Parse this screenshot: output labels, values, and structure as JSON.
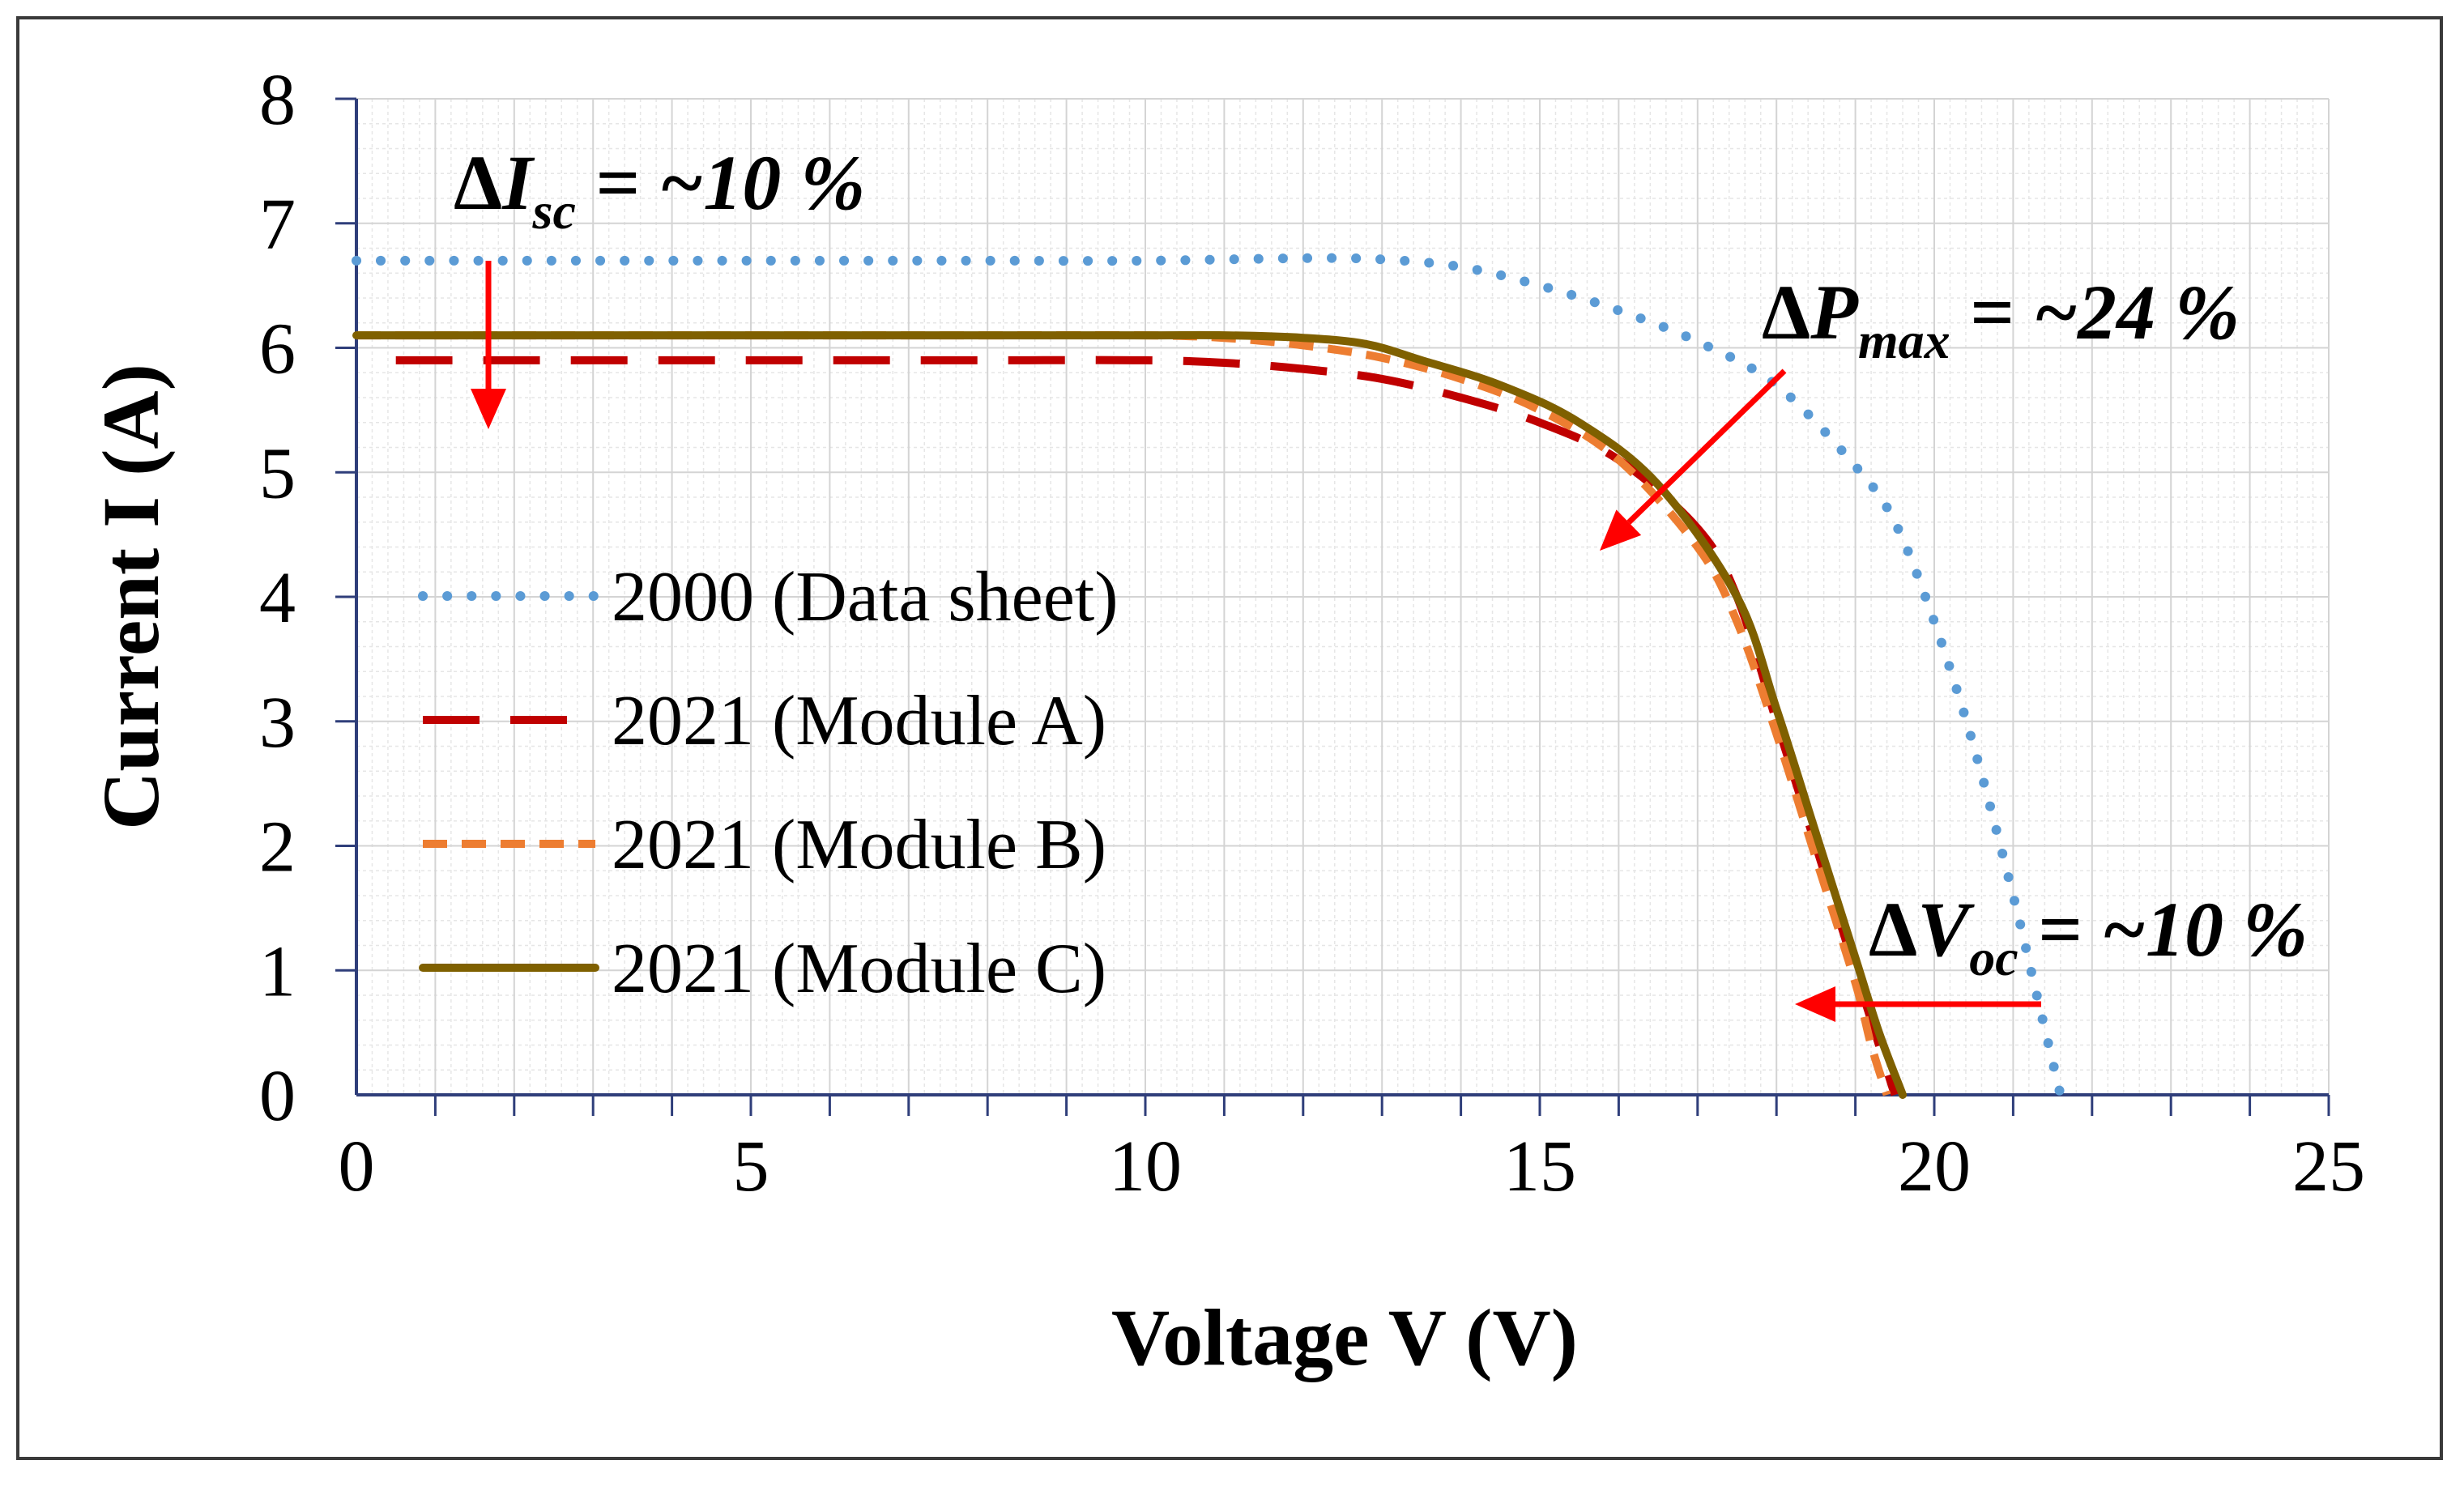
{
  "chart_data": {
    "type": "line",
    "xlabel": "Voltage V (V)",
    "ylabel": "Current I (A)",
    "xlim": [
      0,
      25
    ],
    "ylim": [
      0,
      8
    ],
    "xticks": [
      "0",
      "5",
      "10",
      "15",
      "20",
      "25"
    ],
    "yticks": [
      "0",
      "1",
      "2",
      "3",
      "4",
      "5",
      "6",
      "7",
      "8"
    ],
    "grid": true,
    "legend_position": "center-left",
    "series": [
      {
        "name": "2000 (Data sheet)",
        "color": "#5B9BD5",
        "style": "dotted",
        "x": [
          0,
          2,
          4,
          6,
          8,
          10,
          12,
          13,
          14,
          15,
          16,
          17,
          18,
          19,
          19.5,
          20,
          20.5,
          21,
          21.3,
          21.6
        ],
        "y": [
          6.7,
          6.7,
          6.7,
          6.7,
          6.7,
          6.7,
          6.72,
          6.71,
          6.65,
          6.5,
          6.3,
          6.05,
          5.7,
          5.05,
          4.6,
          3.8,
          2.8,
          1.6,
          0.8,
          0
        ]
      },
      {
        "name": "2021 (Module A)",
        "color": "#C00000",
        "style": "dashed",
        "x": [
          0.5,
          2,
          4,
          6,
          8,
          10,
          11,
          12,
          13,
          14,
          15,
          16,
          17,
          17.5,
          18,
          18.5,
          19,
          19.3,
          19.5
        ],
        "y": [
          5.9,
          5.9,
          5.9,
          5.9,
          5.9,
          5.9,
          5.88,
          5.83,
          5.75,
          5.6,
          5.4,
          5.1,
          4.55,
          4.0,
          3.0,
          2.0,
          1.0,
          0.4,
          0
        ]
      },
      {
        "name": "2021 (Module B)",
        "color": "#ED7D31",
        "style": "short-dash",
        "x": [
          0,
          2,
          4,
          6,
          8,
          10,
          11,
          12,
          13,
          14,
          15,
          16,
          17,
          17.5,
          18,
          18.5,
          19,
          19.2,
          19.4
        ],
        "y": [
          6.1,
          6.1,
          6.1,
          6.1,
          6.1,
          6.1,
          6.08,
          6.02,
          5.92,
          5.75,
          5.5,
          5.1,
          4.4,
          3.8,
          2.9,
          1.9,
          0.9,
          0.4,
          0
        ]
      },
      {
        "name": "2021 (Module C)",
        "color": "#7F6000",
        "style": "solid",
        "x": [
          0,
          2,
          4,
          6,
          8,
          10,
          11,
          12,
          12.8,
          13.5,
          14.5,
          15.5,
          16.5,
          17.5,
          18,
          18.5,
          19,
          19.3,
          19.6
        ],
        "y": [
          6.1,
          6.1,
          6.1,
          6.1,
          6.1,
          6.1,
          6.1,
          6.08,
          6.03,
          5.9,
          5.7,
          5.4,
          4.9,
          4.0,
          3.1,
          2.1,
          1.1,
          0.5,
          0
        ]
      }
    ],
    "annotations": [
      {
        "name": "isc",
        "delta": "Δ",
        "var": "I",
        "sub": "sc",
        "value": " = ~10 %"
      },
      {
        "name": "pmax",
        "delta": "Δ",
        "var": "P",
        "sub": "max",
        "value": " = ~24 %"
      },
      {
        "name": "voc",
        "delta": "Δ",
        "var": "V",
        "sub": "oc",
        "value": " = ~10 %"
      }
    ],
    "arrow_color": "#FF0000"
  }
}
